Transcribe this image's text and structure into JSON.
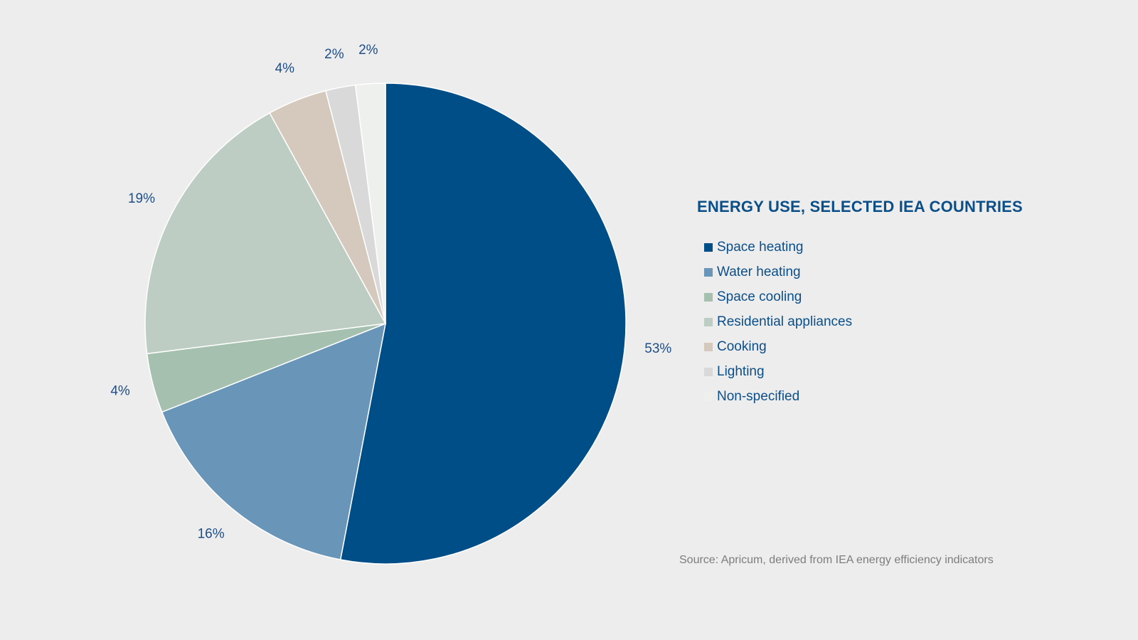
{
  "chart_data": {
    "type": "pie",
    "title": "ENERGY USE, SELECTED IEA COUNTRIES",
    "legend_position": "right",
    "slices": [
      {
        "label": "Space heating",
        "value": 53,
        "display": "53%",
        "color": "#004e87"
      },
      {
        "label": "Water heating",
        "value": 16,
        "display": "16%",
        "color": "#6895b8"
      },
      {
        "label": "Space cooling",
        "value": 4,
        "display": "4%",
        "color": "#a6c0b0"
      },
      {
        "label": "Residential appliances",
        "value": 19,
        "display": "19%",
        "color": "#bdcdc3"
      },
      {
        "label": "Cooking",
        "value": 4,
        "display": "4%",
        "color": "#d5c8bc"
      },
      {
        "label": "Lighting",
        "value": 2,
        "display": "2%",
        "color": "#d9d9d9"
      },
      {
        "label": "Non-specified",
        "value": 2,
        "display": "2%",
        "color": "#eef0ee"
      }
    ],
    "source": "Source: Apricum, derived from IEA energy efficiency indicators"
  }
}
